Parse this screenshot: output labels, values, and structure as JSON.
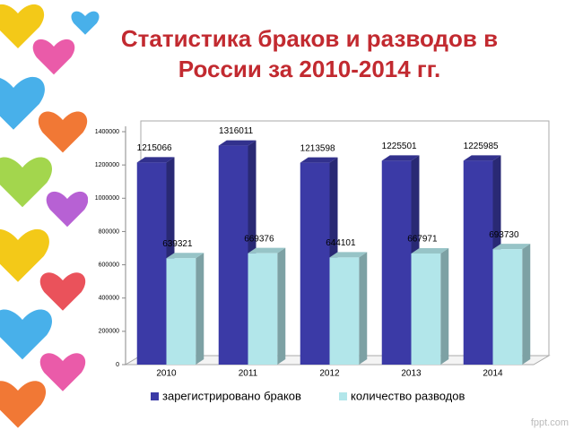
{
  "chart_data": {
    "type": "bar3d",
    "title": "Статистика браков и разводов в России за 2010-2014 гг.",
    "categories": [
      "2010",
      "2011",
      "2012",
      "2013",
      "2014"
    ],
    "series": [
      {
        "name": "зарегистрировано браков",
        "color": "#3b3aa6",
        "values": [
          1215066,
          1316011,
          1213598,
          1225501,
          1225985
        ]
      },
      {
        "name": "количество разводов",
        "color": "#b2e6ea",
        "values": [
          639321,
          669376,
          644101,
          667971,
          693730
        ]
      }
    ],
    "ylim": [
      0,
      1400000
    ],
    "yticks": [
      0,
      200000,
      400000,
      600000,
      800000,
      1000000,
      1200000,
      1400000
    ],
    "legend": "bottom",
    "watermark": "fppt.com"
  }
}
